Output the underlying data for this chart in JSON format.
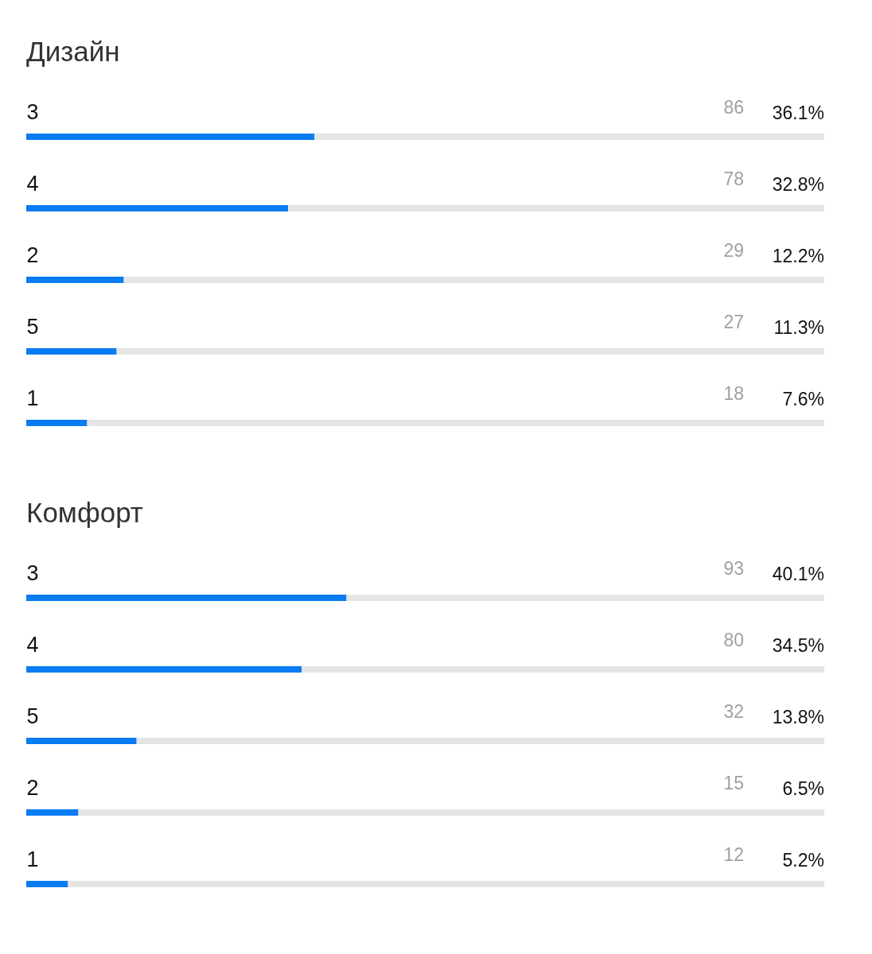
{
  "chart_data": [
    {
      "type": "bar",
      "orientation": "horizontal",
      "title": "Дизайн",
      "categories": [
        "3",
        "4",
        "2",
        "5",
        "1"
      ],
      "values": [
        36.1,
        32.8,
        12.2,
        11.3,
        7.6
      ],
      "color": "#0a7cf2",
      "value_labels": [
        "36.1%",
        "32.8%",
        "12.2%",
        "11.3%",
        "7.6%"
      ],
      "annotations": [
        "86",
        "78",
        "29",
        "27",
        "18"
      ],
      "xlim": [
        0,
        100
      ],
      "tick_labels": "y"
    },
    {
      "type": "bar",
      "orientation": "horizontal",
      "title": "Комфорт",
      "categories": [
        "3",
        "4",
        "5",
        "2",
        "1"
      ],
      "values": [
        40.1,
        34.5,
        13.8,
        6.5,
        5.2
      ],
      "color": "#0a7cf2",
      "value_labels": [
        "40.1%",
        "34.5%",
        "13.8%",
        "6.5%",
        "5.2%"
      ],
      "annotations": [
        "93",
        "80",
        "32",
        "15",
        "12"
      ],
      "xlim": [
        0,
        100
      ],
      "tick_labels": "y"
    }
  ]
}
